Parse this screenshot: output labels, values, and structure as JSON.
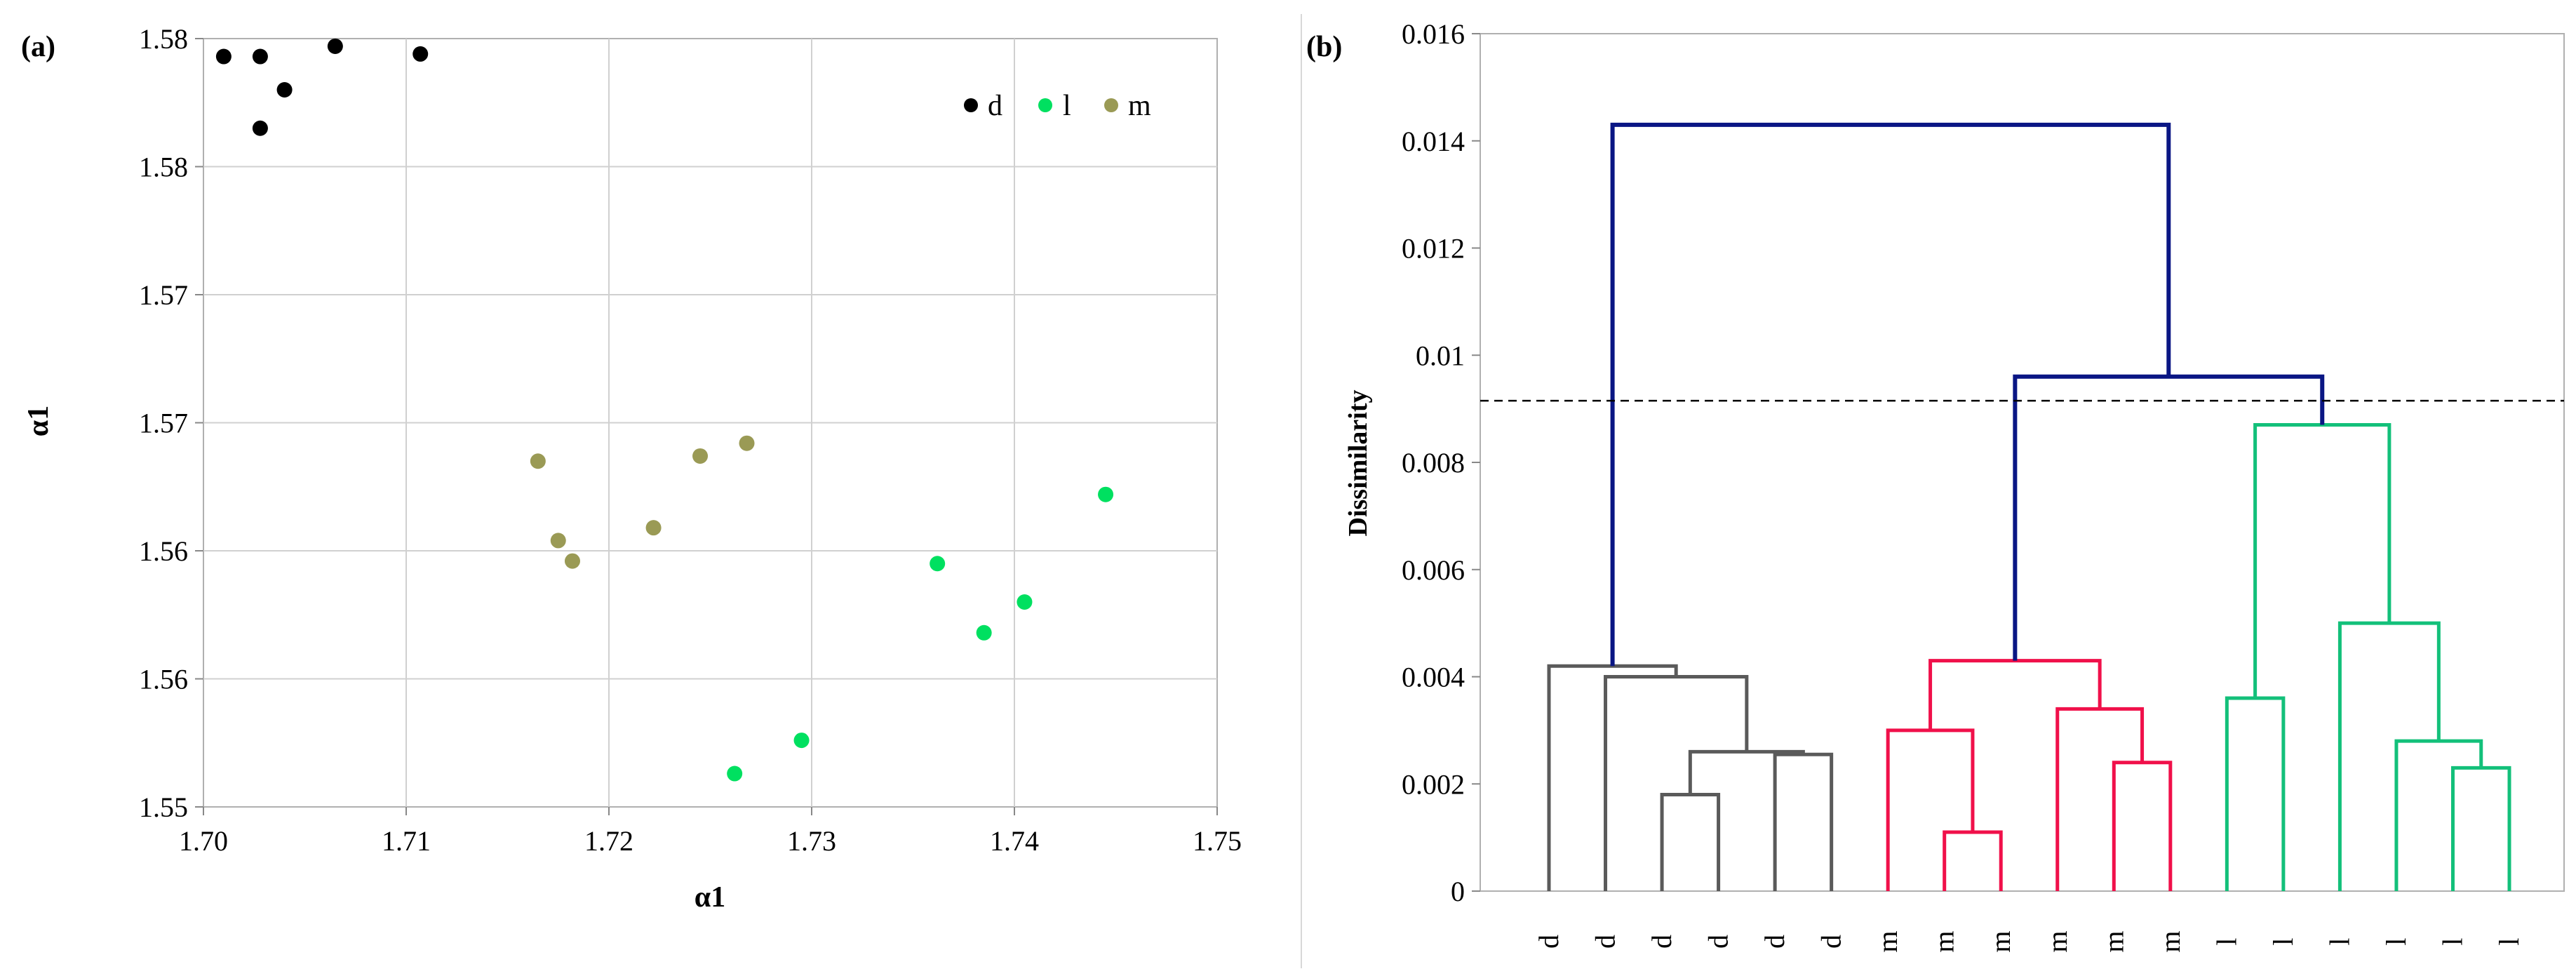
{
  "chart_data": [
    {
      "panel": "(a)",
      "type": "scatter",
      "xlabel": "α1",
      "ylabel": "α1",
      "xlim": [
        1.7,
        1.75
      ],
      "ylim": [
        1.55,
        1.58
      ],
      "x_ticks": [
        1.7,
        1.71,
        1.72,
        1.73,
        1.74,
        1.75
      ],
      "x_tick_labels": [
        "1.70",
        "1.71",
        "1.72",
        "1.73",
        "1.74",
        "1.75"
      ],
      "y_ticks": [
        1.55,
        1.555,
        1.56,
        1.565,
        1.57,
        1.575,
        1.58
      ],
      "y_tick_labels": [
        "1.55",
        "1.56",
        "1.56",
        "1.57",
        "1.57",
        "1.58",
        "1.58"
      ],
      "legend_position": "top-right",
      "series": [
        {
          "name": "d",
          "color": "#000000",
          "x": [
            1.701,
            1.7028,
            1.7065,
            1.7107,
            1.704,
            1.7028
          ],
          "y": [
            1.5793,
            1.5793,
            1.5797,
            1.5794,
            1.578,
            1.5765
          ]
        },
        {
          "name": "l",
          "color": "#00e060",
          "x": [
            1.7445,
            1.7362,
            1.7405,
            1.7385,
            1.7295,
            1.7262
          ],
          "y": [
            1.5622,
            1.5595,
            1.558,
            1.5568,
            1.5526,
            1.5513
          ]
        },
        {
          "name": "m",
          "color": "#9a9a55",
          "x": [
            1.7165,
            1.7245,
            1.7268,
            1.7175,
            1.7182,
            1.7222
          ],
          "y": [
            1.5635,
            1.5637,
            1.5642,
            1.5604,
            1.5596,
            1.5609
          ]
        }
      ]
    },
    {
      "panel": "(b)",
      "type": "dendrogram",
      "ylabel": "Dissimilarity",
      "ylim": [
        0,
        0.016
      ],
      "y_ticks": [
        0,
        0.002,
        0.004,
        0.006,
        0.008,
        0.01,
        0.012,
        0.014,
        0.016
      ],
      "y_tick_labels": [
        "0",
        "0.002",
        "0.004",
        "0.006",
        "0.008",
        "0.01",
        "0.012",
        "0.014",
        "0.016"
      ],
      "leaves": [
        "d",
        "d",
        "d",
        "d",
        "d",
        "d",
        "m",
        "m",
        "m",
        "m",
        "m",
        "m",
        "l",
        "l",
        "l",
        "l",
        "l",
        "l"
      ],
      "cut_line": 0.00915,
      "colors": {
        "d": "#5a5a5a",
        "m": "#f0104a",
        "l": "#13c07a",
        "top": "#0a1684"
      },
      "links": [
        {
          "a": "L2",
          "b": "L3",
          "h": 0.0018,
          "id": "N1",
          "c": "d"
        },
        {
          "a": "L4",
          "b": "L5",
          "h": 0.00255,
          "id": "N2",
          "c": "d"
        },
        {
          "a": "N1",
          "b": "N2",
          "h": 0.0026,
          "id": "N3",
          "c": "d"
        },
        {
          "a": "L1",
          "b": "N3",
          "h": 0.004,
          "id": "N4",
          "c": "d"
        },
        {
          "a": "L0",
          "b": "N4",
          "h": 0.0042,
          "id": "Nd",
          "c": "d"
        },
        {
          "a": "L7",
          "b": "L8",
          "h": 0.0011,
          "id": "N5",
          "c": "m"
        },
        {
          "a": "L6",
          "b": "N5",
          "h": 0.003,
          "id": "N6",
          "c": "m"
        },
        {
          "a": "L10",
          "b": "L11",
          "h": 0.0024,
          "id": "N7",
          "c": "m"
        },
        {
          "a": "L9",
          "b": "N7",
          "h": 0.0034,
          "id": "N8",
          "c": "m"
        },
        {
          "a": "N6",
          "b": "N8",
          "h": 0.0043,
          "id": "Nm",
          "c": "m"
        },
        {
          "a": "L16",
          "b": "L17",
          "h": 0.0023,
          "id": "N9",
          "c": "l"
        },
        {
          "a": "L15",
          "b": "N9",
          "h": 0.0028,
          "id": "N10",
          "c": "l"
        },
        {
          "a": "L14",
          "b": "N10",
          "h": 0.005,
          "id": "N11",
          "c": "l"
        },
        {
          "a": "L12",
          "b": "L13",
          "h": 0.0036,
          "id": "N12",
          "c": "l"
        },
        {
          "a": "N12",
          "b": "N11",
          "h": 0.0087,
          "id": "Nl",
          "c": "l"
        },
        {
          "a": "Nm",
          "b": "Nl",
          "h": 0.0096,
          "id": "Nml",
          "c": "top"
        },
        {
          "a": "Nd",
          "b": "Nml",
          "h": 0.0143,
          "id": "Root",
          "c": "top"
        }
      ]
    }
  ]
}
